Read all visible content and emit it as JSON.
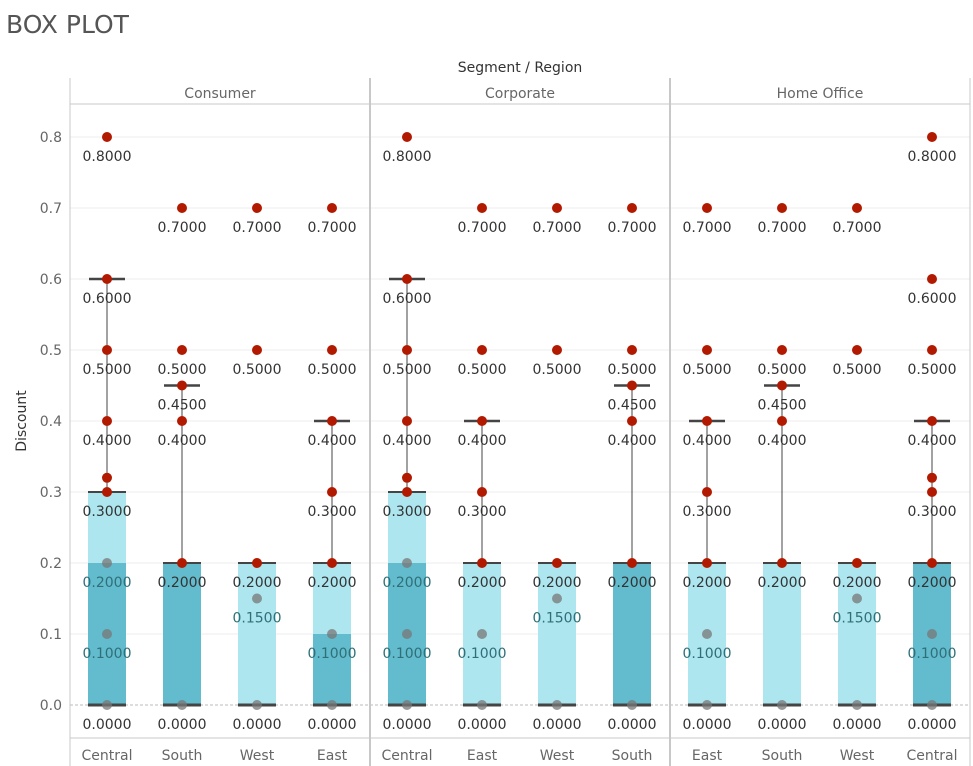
{
  "page": {
    "title": "BOX PLOT"
  },
  "chart_data": {
    "type": "box",
    "title": "",
    "column_header": "Segment / Region",
    "ylabel": "Discount",
    "ylim": [
      0,
      0.8
    ],
    "yticks": [
      "0.0",
      "0.1",
      "0.2",
      "0.3",
      "0.4",
      "0.5",
      "0.6",
      "0.7",
      "0.8"
    ],
    "grid": true,
    "colors": {
      "point": "#b11a00",
      "dark_box": "#63bccd",
      "light_box": "#aee6f0",
      "whisker": "#444444",
      "median": "#444444"
    },
    "segments": [
      {
        "name": "Consumer",
        "regions": [
          {
            "region": "Central",
            "points": [
              0.8,
              0.6,
              0.5,
              0.4,
              0.32,
              0.3,
              0.2,
              0.1,
              0
            ],
            "labels": [
              "0.8000",
              "0.6000",
              "0.5000",
              "0.4000",
              "0.3000",
              "0.2000",
              "0.1000",
              "0.0000"
            ],
            "q1": 0,
            "median": 0.2,
            "q3": 0.3,
            "whisker_high": 0.6,
            "lower_box": "dark",
            "upper_box": "light"
          },
          {
            "region": "South",
            "points": [
              0.7,
              0.5,
              0.45,
              0.4,
              0.2,
              0
            ],
            "labels": [
              "0.7000",
              "0.5000",
              "0.4500",
              "0.4000",
              "0.2000",
              "0.0000"
            ],
            "q1": 0,
            "median": 0.2,
            "q3": 0.2,
            "whisker_high": 0.45,
            "lower_box": "dark",
            "upper_box": "light"
          },
          {
            "region": "West",
            "points": [
              0.7,
              0.5,
              0.2,
              0.15,
              0
            ],
            "labels": [
              "0.7000",
              "0.5000",
              "0.2000",
              "0.1500",
              "0.0000"
            ],
            "q1": 0,
            "median": 0,
            "q3": 0.2,
            "whisker_high": 0.2,
            "lower_box": "dark",
            "upper_box": "light"
          },
          {
            "region": "East",
            "points": [
              0.7,
              0.5,
              0.4,
              0.3,
              0.2,
              0.1,
              0
            ],
            "labels": [
              "0.7000",
              "0.5000",
              "0.4000",
              "0.3000",
              "0.2000",
              "0.1000",
              "0.0000"
            ],
            "q1": 0,
            "median": 0.1,
            "q3": 0.2,
            "whisker_high": 0.4,
            "lower_box": "dark",
            "upper_box": "light"
          }
        ]
      },
      {
        "name": "Corporate",
        "regions": [
          {
            "region": "Central",
            "points": [
              0.8,
              0.6,
              0.5,
              0.4,
              0.32,
              0.3,
              0.2,
              0.1,
              0
            ],
            "labels": [
              "0.8000",
              "0.6000",
              "0.5000",
              "0.4000",
              "0.3000",
              "0.2000",
              "0.1000",
              "0.0000"
            ],
            "q1": 0,
            "median": 0.2,
            "q3": 0.3,
            "whisker_high": 0.6,
            "lower_box": "dark",
            "upper_box": "light"
          },
          {
            "region": "East",
            "points": [
              0.7,
              0.5,
              0.4,
              0.3,
              0.2,
              0.1,
              0
            ],
            "labels": [
              "0.7000",
              "0.5000",
              "0.4000",
              "0.3000",
              "0.2000",
              "0.1000",
              "0.0000"
            ],
            "q1": 0,
            "median": 0,
            "q3": 0.2,
            "whisker_high": 0.4,
            "lower_box": "dark",
            "upper_box": "light"
          },
          {
            "region": "West",
            "points": [
              0.7,
              0.5,
              0.2,
              0.15,
              0
            ],
            "labels": [
              "0.7000",
              "0.5000",
              "0.2000",
              "0.1500",
              "0.0000"
            ],
            "q1": 0,
            "median": 0,
            "q3": 0.2,
            "whisker_high": 0.2,
            "lower_box": "dark",
            "upper_box": "light"
          },
          {
            "region": "South",
            "points": [
              0.7,
              0.5,
              0.45,
              0.4,
              0.2,
              0
            ],
            "labels": [
              "0.7000",
              "0.5000",
              "0.4500",
              "0.4000",
              "0.2000",
              "0.0000"
            ],
            "q1": 0,
            "median": 0.2,
            "q3": 0.2,
            "whisker_high": 0.45,
            "lower_box": "dark",
            "upper_box": "light"
          }
        ]
      },
      {
        "name": "Home Office",
        "regions": [
          {
            "region": "East",
            "points": [
              0.7,
              0.5,
              0.4,
              0.3,
              0.2,
              0.1,
              0
            ],
            "labels": [
              "0.7000",
              "0.5000",
              "0.4000",
              "0.3000",
              "0.2000",
              "0.1000",
              "0.0000"
            ],
            "q1": 0,
            "median": 0,
            "q3": 0.2,
            "whisker_high": 0.4,
            "lower_box": "dark",
            "upper_box": "light"
          },
          {
            "region": "South",
            "points": [
              0.7,
              0.5,
              0.45,
              0.4,
              0.2,
              0
            ],
            "labels": [
              "0.7000",
              "0.5000",
              "0.4500",
              "0.4000",
              "0.2000",
              "0.0000"
            ],
            "q1": 0,
            "median": 0,
            "q3": 0.2,
            "whisker_high": 0.45,
            "lower_box": "dark",
            "upper_box": "light"
          },
          {
            "region": "West",
            "points": [
              0.7,
              0.5,
              0.2,
              0.15,
              0
            ],
            "labels": [
              "0.7000",
              "0.5000",
              "0.2000",
              "0.1500",
              "0.0000"
            ],
            "q1": 0,
            "median": 0,
            "q3": 0.2,
            "whisker_high": 0.2,
            "lower_box": "dark",
            "upper_box": "light"
          },
          {
            "region": "Central",
            "points": [
              0.8,
              0.6,
              0.5,
              0.4,
              0.32,
              0.3,
              0.2,
              0.1,
              0
            ],
            "labels": [
              "0.8000",
              "0.6000",
              "0.5000",
              "0.4000",
              "0.3000",
              "0.2000",
              "0.1000",
              "0.0000"
            ],
            "q1": 0,
            "median": 0.2,
            "q3": 0.2,
            "whisker_high": 0.4,
            "lower_box": "dark",
            "upper_box": "light"
          }
        ]
      }
    ]
  }
}
